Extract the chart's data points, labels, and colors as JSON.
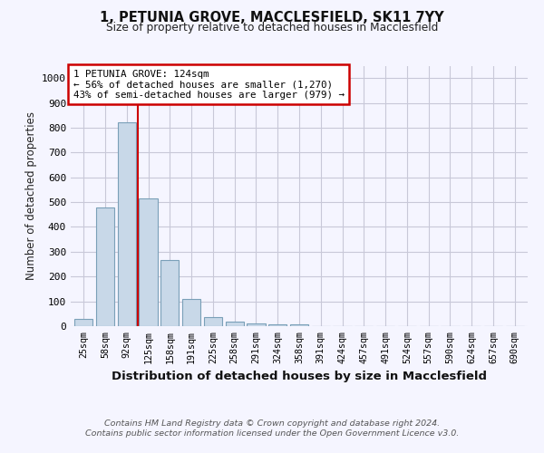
{
  "title_line1": "1, PETUNIA GROVE, MACCLESFIELD, SK11 7YY",
  "title_line2": "Size of property relative to detached houses in Macclesfield",
  "xlabel": "Distribution of detached houses by size in Macclesfield",
  "ylabel": "Number of detached properties",
  "categories": [
    "25sqm",
    "58sqm",
    "92sqm",
    "125sqm",
    "158sqm",
    "191sqm",
    "225sqm",
    "258sqm",
    "291sqm",
    "324sqm",
    "358sqm",
    "391sqm",
    "424sqm",
    "457sqm",
    "491sqm",
    "524sqm",
    "557sqm",
    "590sqm",
    "624sqm",
    "657sqm",
    "690sqm"
  ],
  "values": [
    28,
    478,
    820,
    515,
    265,
    110,
    37,
    20,
    10,
    7,
    8,
    0,
    0,
    0,
    0,
    0,
    0,
    0,
    0,
    0,
    0
  ],
  "bar_color": "#c8d8e8",
  "bar_edge_color": "#7aa0b8",
  "annotation_text": "1 PETUNIA GROVE: 124sqm\n← 56% of detached houses are smaller (1,270)\n43% of semi-detached houses are larger (979) →",
  "annotation_box_color": "white",
  "annotation_box_edge_color": "#cc0000",
  "red_line_color": "#cc0000",
  "ylim": [
    0,
    1050
  ],
  "yticks": [
    0,
    100,
    200,
    300,
    400,
    500,
    600,
    700,
    800,
    900,
    1000
  ],
  "footer_line1": "Contains HM Land Registry data © Crown copyright and database right 2024.",
  "footer_line2": "Contains public sector information licensed under the Open Government Licence v3.0.",
  "bg_color": "#f5f5ff",
  "grid_color": "#c8c8d8"
}
